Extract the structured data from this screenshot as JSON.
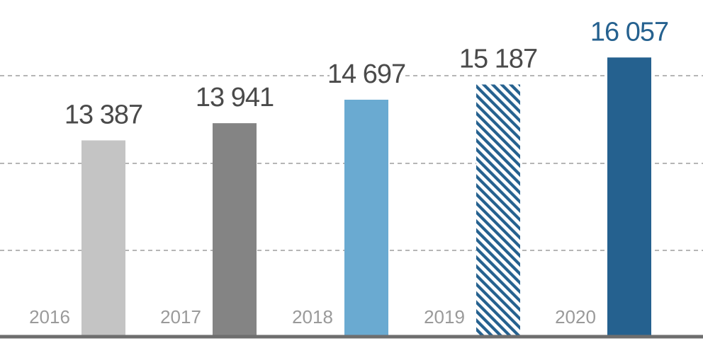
{
  "chart_data": {
    "type": "bar",
    "title": "",
    "xlabel": "",
    "ylabel": "",
    "categories": [
      "2016",
      "2017",
      "2018",
      "2019",
      "2020"
    ],
    "values": [
      13387,
      13941,
      14697,
      15187,
      16057
    ],
    "value_labels": [
      "13 387",
      "13 941",
      "14 697",
      "15 187",
      "16 057"
    ],
    "bar_colors": [
      "#c4c4c4",
      "#848484",
      "#6aaad1",
      "#25618f",
      "#25618f"
    ],
    "bar_patterns": [
      "solid",
      "solid",
      "solid",
      "diagonal-hatch",
      "solid"
    ],
    "value_label_colors": [
      "#4a4a4a",
      "#4a4a4a",
      "#4a4a4a",
      "#4a4a4a",
      "#25618f"
    ],
    "grid": true,
    "axis_labels_shown": false
  }
}
